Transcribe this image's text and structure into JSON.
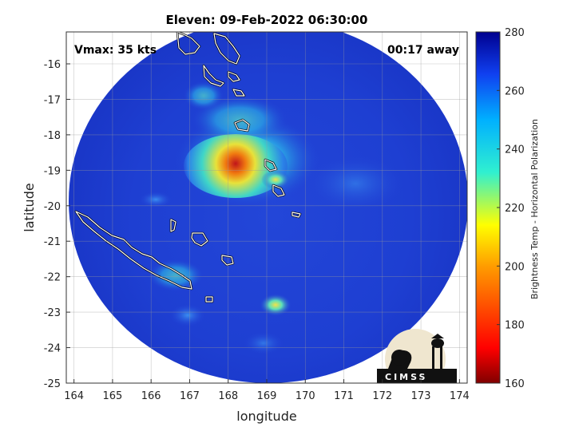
{
  "title": "Eleven: 09-Feb-2022 06:30:00",
  "annotations": {
    "vmax": "Vmax: 35 kts",
    "away": "00:17 away"
  },
  "xaxis": {
    "label": "longitude",
    "ticks": [
      "164",
      "165",
      "166",
      "167",
      "168",
      "169",
      "170",
      "171",
      "172",
      "173",
      "174"
    ]
  },
  "yaxis": {
    "label": "latitude",
    "ticks": [
      "-16",
      "-17",
      "-18",
      "-19",
      "-20",
      "-21",
      "-22",
      "-23",
      "-24",
      "-25"
    ]
  },
  "colorbar": {
    "label": "Brightness Temp - Horizontal Polarization",
    "ticks": [
      "280",
      "260",
      "240",
      "220",
      "200",
      "180",
      "160"
    ],
    "min": 160,
    "max": 280
  },
  "logo": {
    "text": "CIMSS"
  },
  "map_extent": {
    "lon": [
      163.8,
      174.2
    ],
    "lat": [
      -25,
      -15.1
    ]
  },
  "colors": {
    "background_cold": "#0a1a8a",
    "field_base": "#1f43d8",
    "coast": "#000000"
  }
}
